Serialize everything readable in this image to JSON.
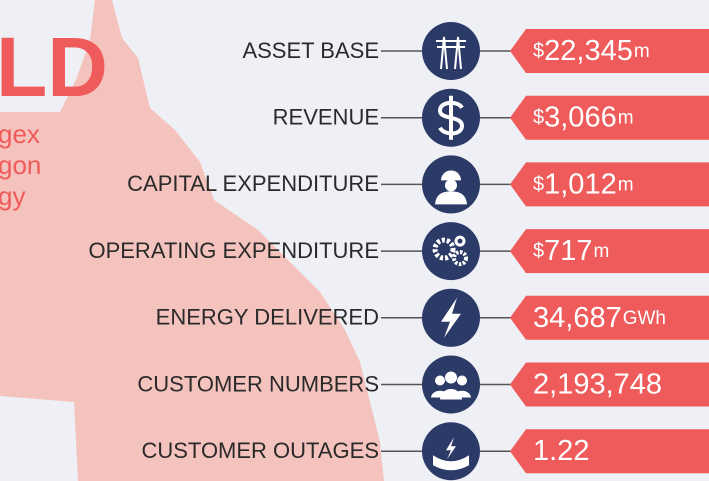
{
  "header": {
    "title": "LD",
    "lines": [
      "gex",
      "gon",
      "gy"
    ]
  },
  "rows": [
    {
      "label": "ASSET BASE",
      "icon": "pylon",
      "prefix": "$",
      "value": "22,345",
      "unit": "m"
    },
    {
      "label": "REVENUE",
      "icon": "dollar",
      "prefix": "$",
      "value": "3,066",
      "unit": "m"
    },
    {
      "label": "CAPITAL EXPENDITURE",
      "icon": "worker",
      "prefix": "$",
      "value": "1,012",
      "unit": "m"
    },
    {
      "label": "OPERATING EXPENDITURE",
      "icon": "gears",
      "prefix": "$",
      "value": "717",
      "unit": "m"
    },
    {
      "label": "ENERGY DELIVERED",
      "icon": "bolt",
      "value": "34,687",
      "unit": "GWh"
    },
    {
      "label": "CUSTOMER NUMBERS",
      "icon": "people",
      "value": "2,193,748"
    },
    {
      "label": "CUSTOMER OUTAGES",
      "icon": "outage",
      "value": "1.22"
    }
  ]
}
